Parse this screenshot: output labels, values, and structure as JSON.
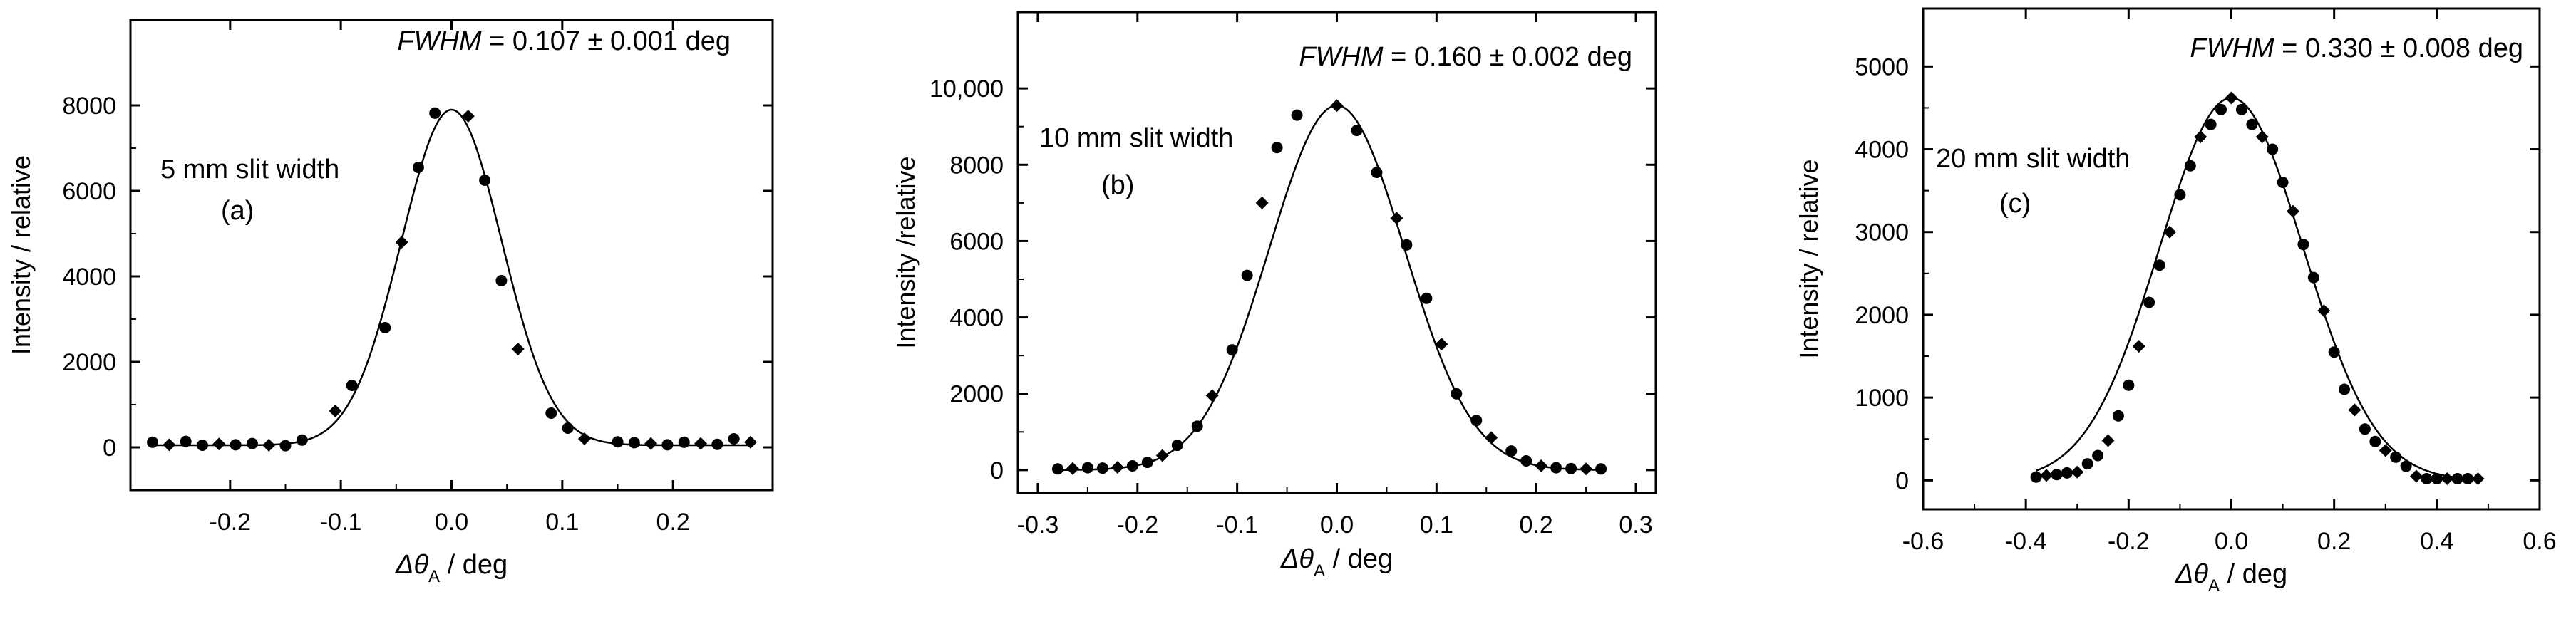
{
  "chart_data": [
    {
      "type": "scatter",
      "panel": "(a)",
      "slit_label": "5 mm slit width",
      "panel_label": "(a)",
      "annotation_prefix": "FWHM",
      "annotation_value": " = 0.107 ±  0.001 deg",
      "ylabel": "Intensity / relative",
      "xlabel_symbol": "Δθ",
      "xlabel_sub": "A",
      "xlabel_unit": " / deg",
      "xlim": [
        -0.29,
        0.29
      ],
      "ylim": [
        -1000,
        10000
      ],
      "xticks": [
        -0.2,
        -0.1,
        0.0,
        0.1,
        0.2
      ],
      "xtick_labels": [
        "-0.2",
        "-0.1",
        "0.0",
        "0.1",
        "0.2"
      ],
      "yticks": [
        0,
        2000,
        4000,
        6000,
        8000
      ],
      "ytick_labels": [
        "0",
        "2000",
        "4000",
        "6000",
        "8000"
      ],
      "fit_center": -0.0,
      "fit_amplitude": 7850,
      "fit_fwhm": 0.107,
      "fit_baseline": 50,
      "points": [
        [
          -0.27,
          120
        ],
        [
          -0.255,
          60
        ],
        [
          -0.24,
          140
        ],
        [
          -0.225,
          50
        ],
        [
          -0.21,
          80
        ],
        [
          -0.195,
          60
        ],
        [
          -0.18,
          90
        ],
        [
          -0.165,
          50
        ],
        [
          -0.15,
          40
        ],
        [
          -0.135,
          170
        ],
        [
          -0.105,
          850
        ],
        [
          -0.09,
          1450
        ],
        [
          -0.06,
          2800
        ],
        [
          -0.045,
          4800
        ],
        [
          -0.03,
          6550
        ],
        [
          -0.015,
          7820
        ],
        [
          0.015,
          7750
        ],
        [
          0.03,
          6250
        ],
        [
          0.045,
          3900
        ],
        [
          0.06,
          2300
        ],
        [
          0.09,
          800
        ],
        [
          0.105,
          450
        ],
        [
          0.12,
          200
        ],
        [
          0.15,
          130
        ],
        [
          0.165,
          110
        ],
        [
          0.18,
          90
        ],
        [
          0.195,
          60
        ],
        [
          0.21,
          120
        ],
        [
          0.225,
          90
        ],
        [
          0.24,
          70
        ],
        [
          0.255,
          200
        ],
        [
          0.27,
          120
        ]
      ]
    },
    {
      "type": "scatter",
      "panel": "(b)",
      "slit_label": "10 mm slit width",
      "panel_label": "(b)",
      "annotation_prefix": "FWHM",
      "annotation_value": " = 0.160 ± 0.002 deg",
      "ylabel": "Intensity /relative",
      "xlabel_symbol": "Δθ",
      "xlabel_sub": "A",
      "xlabel_unit": " / deg",
      "xlim": [
        -0.32,
        0.32
      ],
      "ylim": [
        -600,
        12000
      ],
      "xticks": [
        -0.3,
        -0.2,
        -0.1,
        0.0,
        0.1,
        0.2,
        0.3
      ],
      "xtick_labels": [
        "-0.3",
        "-0.2",
        "-0.1",
        "0.0",
        "0.1",
        "0.2",
        "0.3"
      ],
      "yticks": [
        0,
        2000,
        4000,
        6000,
        8000,
        10000
      ],
      "ytick_labels": [
        "0",
        "2000",
        "4000",
        "6000",
        "8000",
        "10,000"
      ],
      "fit_center": 0.0,
      "fit_amplitude": 9550,
      "fit_fwhm": 0.16,
      "fit_baseline": 0,
      "points": [
        [
          -0.28,
          30
        ],
        [
          -0.265,
          40
        ],
        [
          -0.25,
          60
        ],
        [
          -0.235,
          50
        ],
        [
          -0.22,
          70
        ],
        [
          -0.205,
          110
        ],
        [
          -0.19,
          200
        ],
        [
          -0.175,
          380
        ],
        [
          -0.16,
          650
        ],
        [
          -0.14,
          1150
        ],
        [
          -0.125,
          1950
        ],
        [
          -0.105,
          3150
        ],
        [
          -0.09,
          5100
        ],
        [
          -0.075,
          7000
        ],
        [
          -0.06,
          8450
        ],
        [
          -0.04,
          9300
        ],
        [
          0.0,
          9550
        ],
        [
          0.02,
          8900
        ],
        [
          0.04,
          7800
        ],
        [
          0.06,
          6600
        ],
        [
          0.07,
          5900
        ],
        [
          0.09,
          4500
        ],
        [
          0.105,
          3300
        ],
        [
          0.12,
          2000
        ],
        [
          0.14,
          1300
        ],
        [
          0.155,
          850
        ],
        [
          0.175,
          500
        ],
        [
          0.19,
          240
        ],
        [
          0.205,
          110
        ],
        [
          0.22,
          60
        ],
        [
          0.235,
          40
        ],
        [
          0.25,
          30
        ],
        [
          0.265,
          30
        ]
      ]
    },
    {
      "type": "scatter",
      "panel": "(c)",
      "slit_label": "20 mm slit width",
      "panel_label": "(c)",
      "annotation_prefix": "FWHM",
      "annotation_value": " = 0.330 ± 0.008 deg",
      "ylabel": "Intensity / relative",
      "xlabel_symbol": "Δθ",
      "xlabel_sub": "A",
      "xlabel_unit": " / deg",
      "xlim": [
        -0.6,
        0.6
      ],
      "ylim": [
        -350,
        5700
      ],
      "xticks": [
        -0.6,
        -0.4,
        -0.2,
        0.0,
        0.2,
        0.4,
        0.6
      ],
      "xtick_labels": [
        "-0.6",
        "-0.4",
        "-0.2",
        "0.0",
        "0.2",
        "0.4",
        "0.6"
      ],
      "yticks": [
        0,
        1000,
        2000,
        3000,
        4000,
        5000
      ],
      "ytick_labels": [
        "0",
        "1000",
        "2000",
        "3000",
        "4000",
        "5000"
      ],
      "fit_center": 0.0,
      "fit_amplitude": 4620,
      "fit_fwhm": 0.33,
      "fit_baseline": 0,
      "points": [
        [
          -0.38,
          40
        ],
        [
          -0.36,
          60
        ],
        [
          -0.34,
          70
        ],
        [
          -0.32,
          90
        ],
        [
          -0.3,
          100
        ],
        [
          -0.28,
          200
        ],
        [
          -0.26,
          300
        ],
        [
          -0.24,
          480
        ],
        [
          -0.22,
          780
        ],
        [
          -0.2,
          1150
        ],
        [
          -0.18,
          1620
        ],
        [
          -0.16,
          2150
        ],
        [
          -0.14,
          2600
        ],
        [
          -0.12,
          3000
        ],
        [
          -0.1,
          3450
        ],
        [
          -0.08,
          3800
        ],
        [
          -0.06,
          4150
        ],
        [
          -0.04,
          4300
        ],
        [
          -0.02,
          4480
        ],
        [
          0.0,
          4620
        ],
        [
          0.02,
          4480
        ],
        [
          0.04,
          4300
        ],
        [
          0.06,
          4150
        ],
        [
          0.08,
          4000
        ],
        [
          0.1,
          3600
        ],
        [
          0.12,
          3250
        ],
        [
          0.14,
          2850
        ],
        [
          0.16,
          2450
        ],
        [
          0.18,
          2050
        ],
        [
          0.2,
          1550
        ],
        [
          0.22,
          1100
        ],
        [
          0.24,
          850
        ],
        [
          0.26,
          620
        ],
        [
          0.28,
          470
        ],
        [
          0.3,
          360
        ],
        [
          0.32,
          280
        ],
        [
          0.34,
          170
        ],
        [
          0.36,
          50
        ],
        [
          0.38,
          20
        ],
        [
          0.4,
          20
        ],
        [
          0.42,
          20
        ],
        [
          0.44,
          20
        ],
        [
          0.46,
          20
        ],
        [
          0.48,
          20
        ]
      ]
    }
  ]
}
